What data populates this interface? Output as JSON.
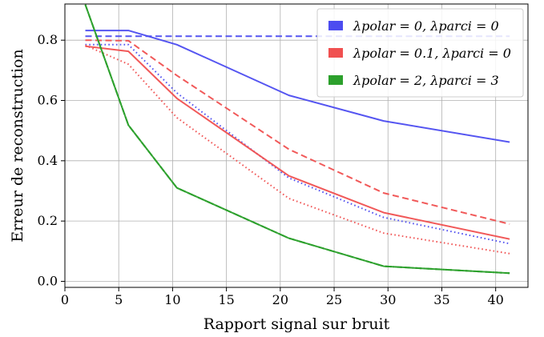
{
  "chart_data": {
    "type": "line",
    "title": "",
    "xlabel": "Rapport signal sur bruit",
    "ylabel": "Erreur de reconstruction",
    "xlim": [
      0,
      43
    ],
    "ylim": [
      -0.02,
      0.92
    ],
    "xticks": [
      0,
      5,
      10,
      15,
      20,
      25,
      30,
      35,
      40
    ],
    "yticks": [
      0.0,
      0.2,
      0.4,
      0.6,
      0.8
    ],
    "ytick_labels": [
      "0.0",
      "0.2",
      "0.4",
      "0.6",
      "0.8"
    ],
    "grid": true,
    "legend_position": "top-right",
    "legend": [
      {
        "label": "λpolar = 0, λparci = 0",
        "color": "#4c4cf0"
      },
      {
        "label": "λpolar = 0.1, λparci = 0",
        "color": "#f05050"
      },
      {
        "label": "λpolar = 2, λparci = 3",
        "color": "#2ca02c"
      }
    ],
    "x": [
      1.9,
      5.9,
      10.4,
      20.8,
      29.6,
      41.3
    ],
    "series": [
      {
        "group": 0,
        "style": "solid",
        "color": "#4c4cf0",
        "values": [
          0.832,
          0.832,
          0.785,
          0.617,
          0.532,
          0.462
        ]
      },
      {
        "group": 0,
        "style": "dashed",
        "color": "#4c4cf0",
        "values": [
          0.813,
          0.813,
          0.813,
          0.813,
          0.813,
          0.813
        ]
      },
      {
        "group": 0,
        "style": "dotted",
        "color": "#4c4cf0",
        "values": [
          0.785,
          0.785,
          0.625,
          0.343,
          0.212,
          0.125
        ]
      },
      {
        "group": 1,
        "style": "solid",
        "color": "#f05050",
        "values": [
          0.78,
          0.763,
          0.607,
          0.35,
          0.228,
          0.14
        ]
      },
      {
        "group": 1,
        "style": "dashed",
        "color": "#f05050",
        "values": [
          0.8,
          0.798,
          0.683,
          0.438,
          0.293,
          0.19
        ]
      },
      {
        "group": 1,
        "style": "dotted",
        "color": "#f05050",
        "values": [
          0.783,
          0.72,
          0.543,
          0.275,
          0.16,
          0.092
        ]
      },
      {
        "group": 2,
        "style": "solid",
        "color": "#2ca02c",
        "values": [
          0.918,
          0.518,
          0.31,
          0.143,
          0.05,
          0.027
        ]
      },
      {
        "group": 2,
        "style": "dashed",
        "color": "#2ca02c",
        "values": [
          0.918,
          0.518,
          0.31,
          0.143,
          0.05,
          0.027
        ]
      },
      {
        "group": 2,
        "style": "dotted",
        "color": "#2ca02c",
        "values": [
          0.918,
          0.518,
          0.31,
          0.143,
          0.05,
          0.027
        ]
      }
    ]
  }
}
